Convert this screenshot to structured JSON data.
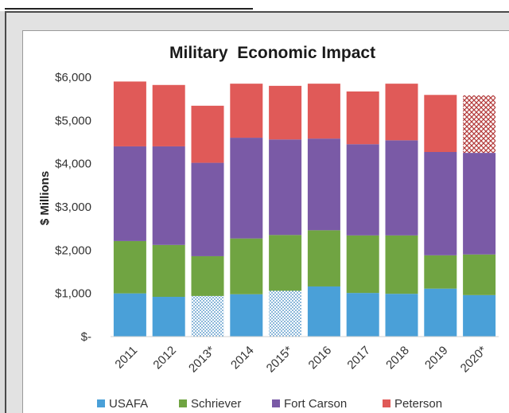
{
  "chart_data": {
    "type": "bar",
    "stacked": true,
    "title": "Military  Economic Impact",
    "xlabel": "",
    "ylabel": "$ Millions",
    "ylim": [
      0,
      6000
    ],
    "y_ticks": [
      "$-",
      "$1,000",
      "$2,000",
      "$3,000",
      "$4,000",
      "$5,000",
      "$6,000"
    ],
    "grid": false,
    "legend_position": "bottom",
    "categories": [
      "2011",
      "2012",
      "2013*",
      "2014",
      "2015*",
      "2016",
      "2017",
      "2018",
      "2019",
      "2020*"
    ],
    "series": [
      {
        "name": "USAFA",
        "color": "#4aa0d8",
        "values": [
          1000,
          920,
          940,
          980,
          1060,
          1160,
          1010,
          990,
          1110,
          960
        ],
        "estimated": [
          false,
          false,
          true,
          false,
          true,
          false,
          false,
          false,
          false,
          false
        ]
      },
      {
        "name": "Schriever",
        "color": "#70a442",
        "values": [
          1210,
          1200,
          920,
          1290,
          1290,
          1300,
          1330,
          1350,
          770,
          940
        ],
        "estimated": [
          false,
          false,
          false,
          false,
          false,
          false,
          false,
          false,
          false,
          false
        ]
      },
      {
        "name": "Fort Carson",
        "color": "#7a5aa6",
        "values": [
          2190,
          2280,
          2160,
          2330,
          2210,
          2120,
          2110,
          2200,
          2390,
          2350
        ],
        "estimated": [
          false,
          false,
          false,
          false,
          false,
          false,
          false,
          false,
          false,
          false
        ]
      },
      {
        "name": "Peterson",
        "color": "#e05a58",
        "values": [
          1500,
          1420,
          1320,
          1250,
          1240,
          1270,
          1220,
          1310,
          1320,
          1330
        ],
        "estimated": [
          false,
          false,
          false,
          false,
          false,
          false,
          false,
          false,
          false,
          true
        ]
      }
    ]
  }
}
